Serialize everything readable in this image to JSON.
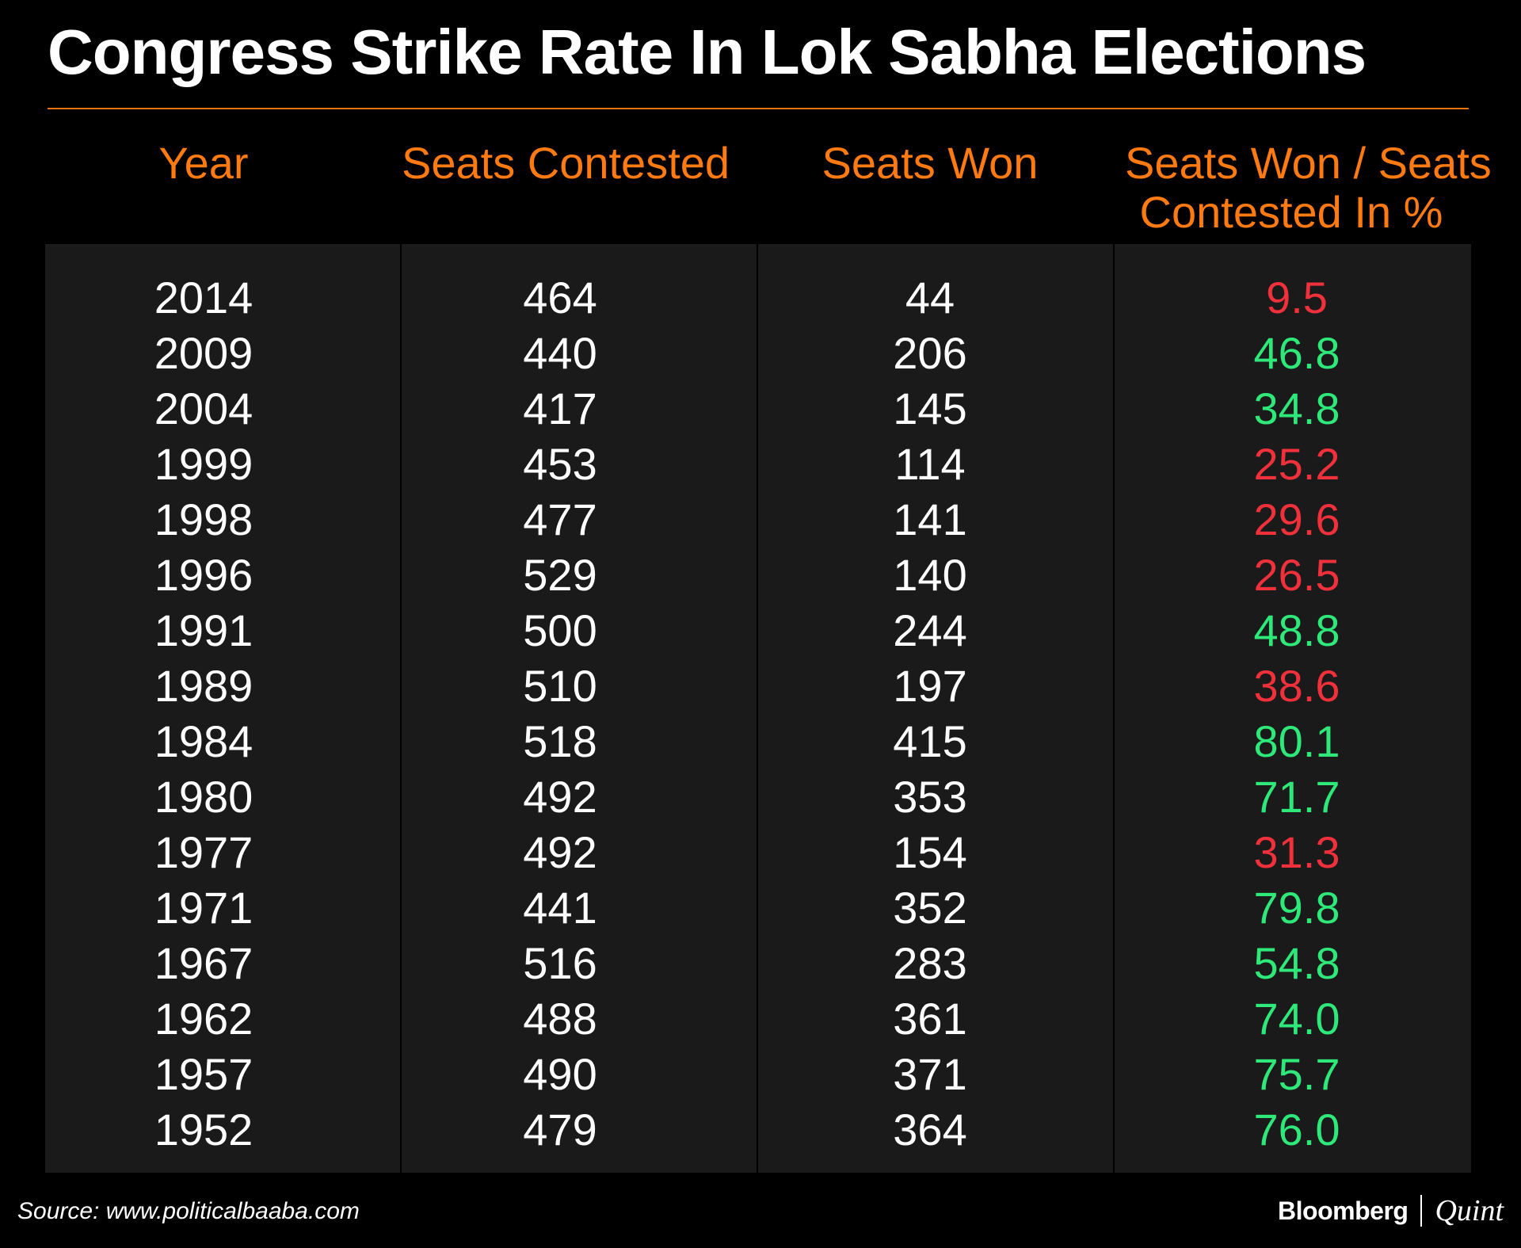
{
  "chart_data": {
    "type": "table",
    "title": "Congress Strike Rate In Lok Sabha Elections",
    "columns": [
      "Year",
      "Seats Contested",
      "Seats Won",
      "Seats Won / Seats Contested In %"
    ],
    "rows": [
      {
        "year": "2014",
        "contested": "464",
        "won": "44",
        "rate": "9.5",
        "trend": "down"
      },
      {
        "year": "2009",
        "contested": "440",
        "won": "206",
        "rate": "46.8",
        "trend": "up"
      },
      {
        "year": "2004",
        "contested": "417",
        "won": "145",
        "rate": "34.8",
        "trend": "up"
      },
      {
        "year": "1999",
        "contested": "453",
        "won": "114",
        "rate": "25.2",
        "trend": "down"
      },
      {
        "year": "1998",
        "contested": "477",
        "won": "141",
        "rate": "29.6",
        "trend": "down"
      },
      {
        "year": "1996",
        "contested": "529",
        "won": "140",
        "rate": "26.5",
        "trend": "down"
      },
      {
        "year": "1991",
        "contested": "500",
        "won": "244",
        "rate": "48.8",
        "trend": "up"
      },
      {
        "year": "1989",
        "contested": "510",
        "won": "197",
        "rate": "38.6",
        "trend": "down"
      },
      {
        "year": "1984",
        "contested": "518",
        "won": "415",
        "rate": "80.1",
        "trend": "up"
      },
      {
        "year": "1980",
        "contested": "492",
        "won": "353",
        "rate": "71.7",
        "trend": "up"
      },
      {
        "year": "1977",
        "contested": "492",
        "won": "154",
        "rate": "31.3",
        "trend": "down"
      },
      {
        "year": "1971",
        "contested": "441",
        "won": "352",
        "rate": "79.8",
        "trend": "up"
      },
      {
        "year": "1967",
        "contested": "516",
        "won": "283",
        "rate": "54.8",
        "trend": "up"
      },
      {
        "year": "1962",
        "contested": "488",
        "won": "361",
        "rate": "74.0",
        "trend": "up"
      },
      {
        "year": "1957",
        "contested": "490",
        "won": "371",
        "rate": "75.7",
        "trend": "up"
      },
      {
        "year": "1952",
        "contested": "479",
        "won": "364",
        "rate": "76.0",
        "trend": "up"
      }
    ]
  },
  "header": {
    "year": "Year",
    "contested": "Seats Contested",
    "won": "Seats Won",
    "rate_line1": "Seats Won / Seats",
    "rate_line2": "Contested In %"
  },
  "footer": {
    "source": "Source: www.politicalbaaba.com",
    "brand_primary": "Bloomberg",
    "brand_secondary": "Quint"
  },
  "colors": {
    "background": "#000000",
    "table_bg": "#1a1a1a",
    "accent": "#ff7a10",
    "up": "#2ee87a",
    "down": "#f0303a",
    "text": "#ffffff"
  }
}
